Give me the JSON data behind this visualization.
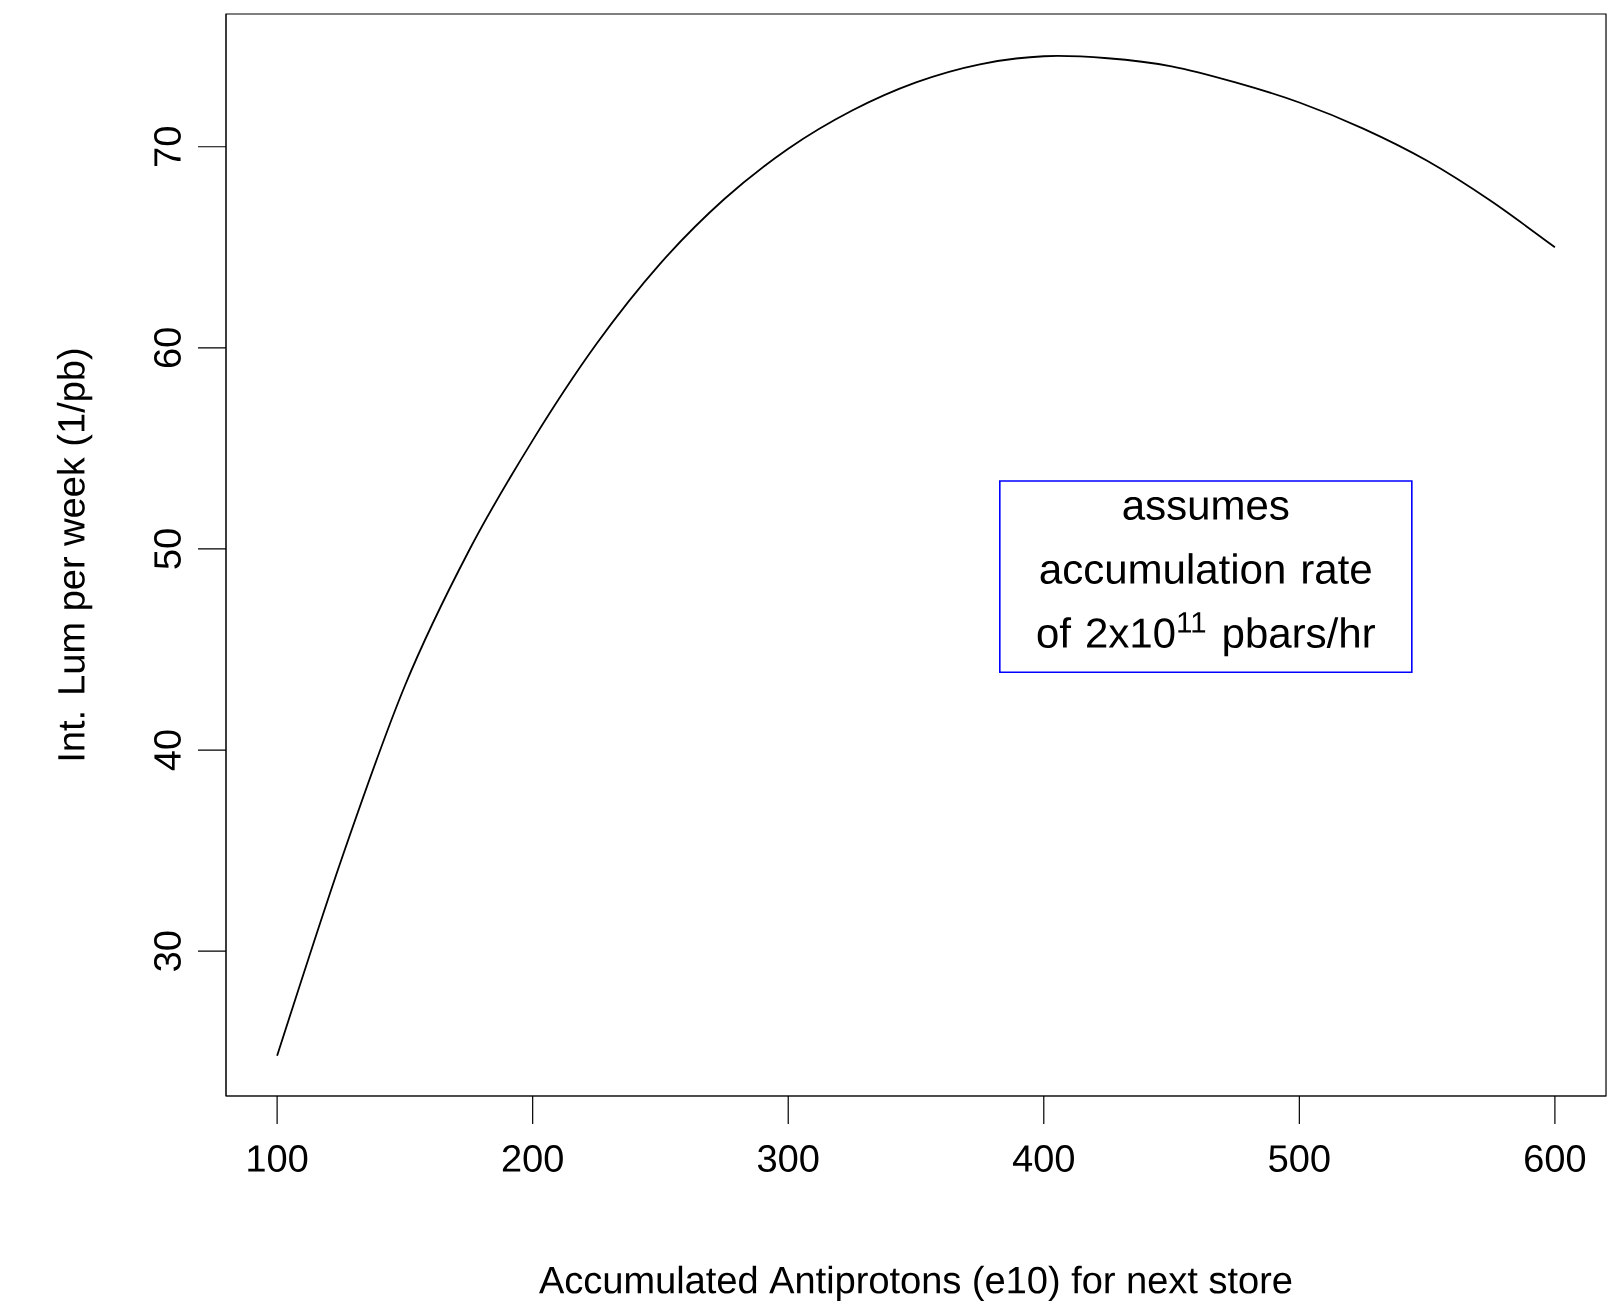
{
  "chart_data": {
    "type": "line",
    "xlabel": "Accumulated Antiprotons (e10) for next store",
    "ylabel": "Int. Lum per week (1/pb)",
    "x": [
      100,
      125,
      150,
      175,
      200,
      225,
      250,
      275,
      300,
      325,
      350,
      375,
      400,
      425,
      450,
      475,
      500,
      525,
      550,
      575,
      600
    ],
    "series": [
      {
        "color": "#000000",
        "values": [
          24.8,
          34.5,
          43.2,
          49.9,
          55.4,
          60.2,
          64.2,
          67.4,
          69.9,
          71.8,
          73.2,
          74.1,
          74.5,
          74.4,
          74.0,
          73.2,
          72.2,
          70.9,
          69.3,
          67.3,
          65.0
        ]
      }
    ],
    "xlim": [
      80,
      620
    ],
    "ylim": [
      22.8,
      76.6
    ],
    "xticks": [
      100,
      200,
      300,
      400,
      500,
      600
    ],
    "yticks": [
      30,
      40,
      50,
      60,
      70
    ],
    "annotations": [
      "assumes accumulation rate of 2x10$^{11}$ pbars/hr"
    ],
    "grid": false,
    "marker": "none",
    "line_style": "solid"
  }
}
